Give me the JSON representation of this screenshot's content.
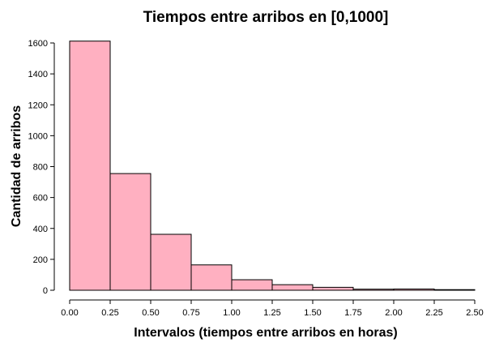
{
  "chart_data": {
    "type": "bar",
    "title": "Tiempos entre arribos en [0,1000]",
    "xlabel": "Intervalos (tiempos entre arribos en horas)",
    "ylabel": "Cantidad de arribos",
    "bin_edges": [
      0.0,
      0.25,
      0.5,
      0.75,
      1.0,
      1.25,
      1.5,
      1.75,
      2.0,
      2.25,
      2.5
    ],
    "values": [
      1612,
      755,
      362,
      164,
      68,
      36,
      19,
      7,
      8,
      4
    ],
    "xlim": [
      0,
      2.5
    ],
    "ylim": [
      0,
      1600
    ],
    "x_ticks": [
      "0.00",
      "0.25",
      "0.50",
      "0.75",
      "1.00",
      "1.25",
      "1.50",
      "1.75",
      "2.00",
      "2.25",
      "2.50"
    ],
    "y_ticks": [
      "0",
      "200",
      "400",
      "600",
      "800",
      "1000",
      "1200",
      "1400",
      "1600"
    ],
    "grid": false,
    "bar_color": "#ffb0c1"
  }
}
